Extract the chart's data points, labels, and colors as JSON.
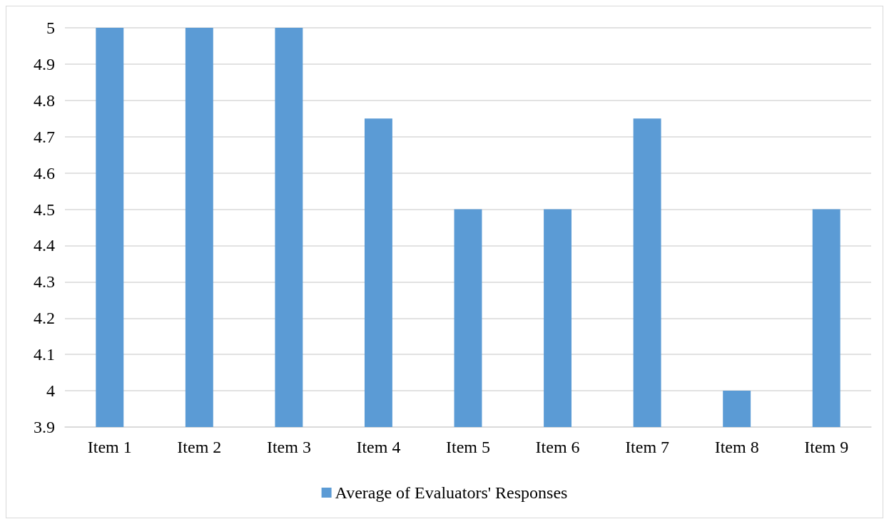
{
  "chart_data": {
    "type": "bar",
    "categories": [
      "Item 1",
      "Item 2",
      "Item 3",
      "Item 4",
      "Item 5",
      "Item 6",
      "Item 7",
      "Item 8",
      "Item 9"
    ],
    "series": [
      {
        "name": "Average of Evaluators' Responses",
        "color": "#5b9bd5",
        "values": [
          5,
          5,
          5,
          4.75,
          4.5,
          4.5,
          4.75,
          4,
          4.5
        ]
      }
    ],
    "ylim": [
      3.9,
      5
    ],
    "yticks": [
      3.9,
      4,
      4.1,
      4.2,
      4.3,
      4.4,
      4.5,
      4.6,
      4.7,
      4.8,
      4.9,
      5
    ],
    "grid": "y",
    "legend": "bottom"
  }
}
